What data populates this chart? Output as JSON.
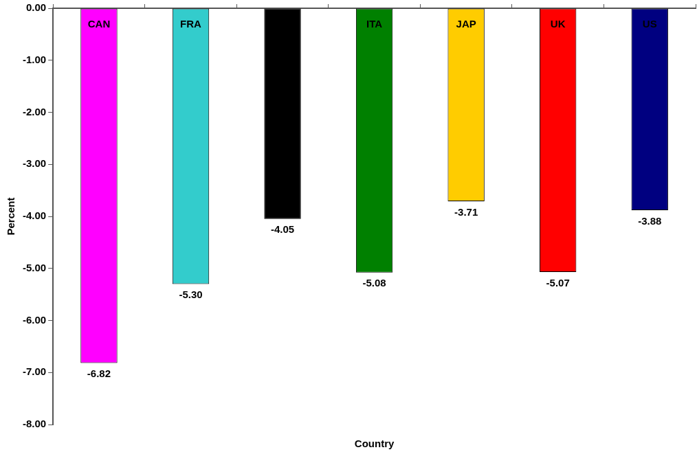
{
  "chart_data": {
    "type": "bar",
    "xlabel": "Country",
    "ylabel": "Percent",
    "categories": [
      "CAN",
      "FRA",
      null,
      "ITA",
      "JAP",
      "UK",
      "US"
    ],
    "values": [
      -6.82,
      -5.3,
      -4.05,
      -5.08,
      -3.71,
      -5.07,
      -3.88
    ],
    "colors": [
      "#ff00ff",
      "#33cccc",
      "#000000",
      "#008000",
      "#ffcc00",
      "#ff0000",
      "#000080"
    ],
    "value_labels": [
      "-6.82",
      "-5.30",
      "-4.05",
      "-5.08",
      "-3.71",
      "-5.07",
      "-3.88"
    ],
    "ylim": [
      -8,
      0
    ],
    "yticks": [
      {
        "value": 0,
        "label": "0.00"
      },
      {
        "value": -1,
        "label": "-1.00"
      },
      {
        "value": -2,
        "label": "-2.00"
      },
      {
        "value": -3,
        "label": "-3.00"
      },
      {
        "value": -4,
        "label": "-4.00"
      },
      {
        "value": -5,
        "label": "-5.00"
      },
      {
        "value": -6,
        "label": "-6.00"
      },
      {
        "value": -7,
        "label": "-7.00"
      },
      {
        "value": -8,
        "label": "-8.00"
      }
    ],
    "grid": false,
    "legend": false
  }
}
